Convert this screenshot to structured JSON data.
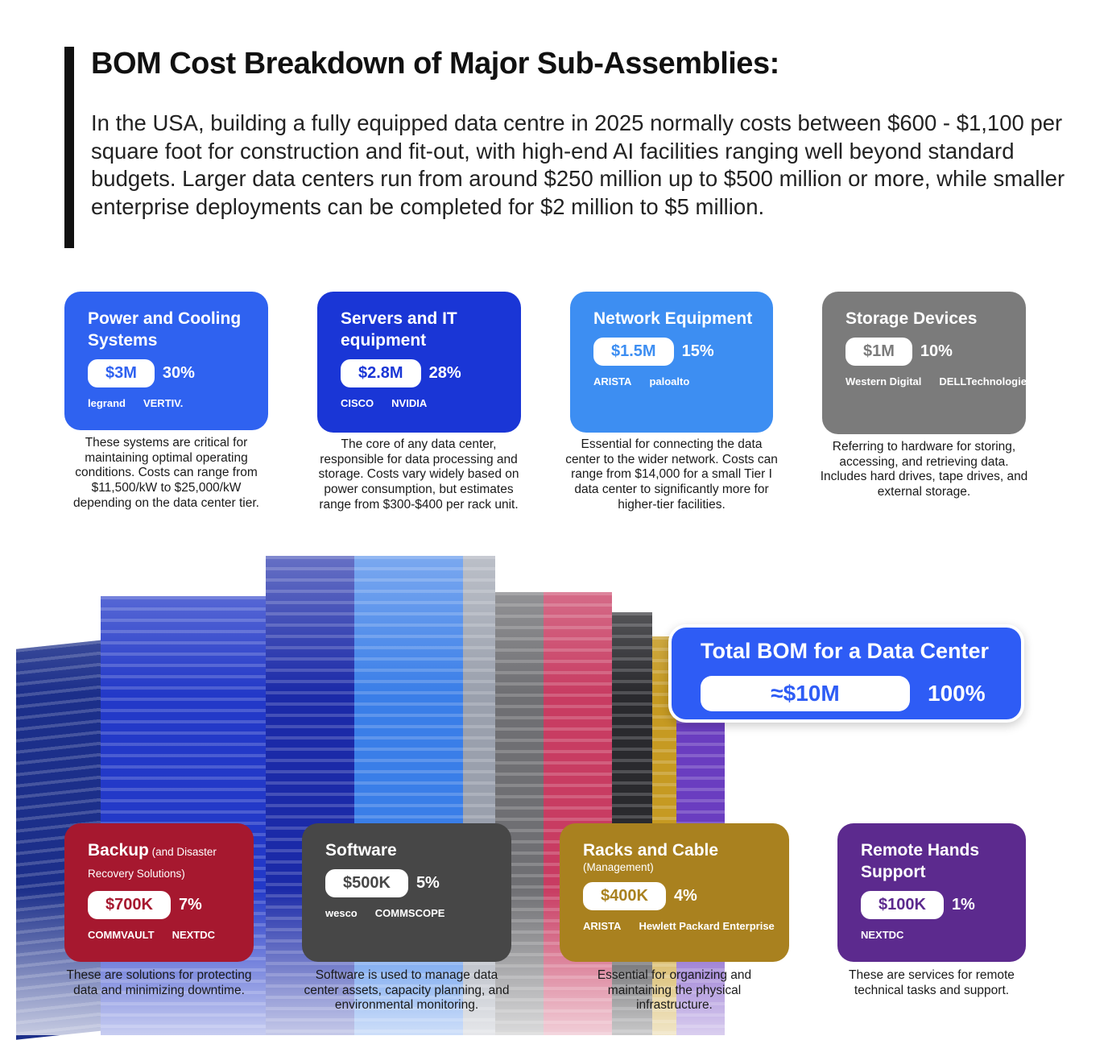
{
  "header": {
    "title": "BOM Cost Breakdown of Major Sub-Assemblies:",
    "intro": "In the USA, building a fully equipped data centre in 2025 normally costs between $600 - $1,100 per square foot for construction and fit-out, with high-end AI facilities ranging well beyond standard budgets. Larger  data centers run from around $250 million up to $500 million or more, while smaller enterprise deployments can be completed for $2 million to $5 million."
  },
  "cards": [
    {
      "title": "Power and Cooling Systems",
      "amount": "$3M",
      "percent": "30%",
      "logos": [
        "legrand",
        "VERTIV."
      ],
      "description": "These systems are critical for maintaining optimal operating conditions. Costs can range from $11,500/kW to $25,000/kW depending on the data center tier."
    },
    {
      "title": "Servers and IT equipment",
      "amount": "$2.8M",
      "percent": "28%",
      "logos": [
        "CISCO",
        "NVIDIA"
      ],
      "description": "The core of any data center, responsible for data processing and storage. Costs vary widely based on power consumption, but estimates range from $300-$400 per rack unit."
    },
    {
      "title": "Network Equipment",
      "amount": "$1.5M",
      "percent": "15%",
      "logos": [
        "ARISTA",
        "paloalto"
      ],
      "description": "Essential for connecting the data center to the wider network. Costs can range from $14,000 for a small Tier I data center to significantly more for higher-tier facilities."
    },
    {
      "title": "Storage Devices",
      "amount": "$1M",
      "percent": "10%",
      "logos": [
        "Western Digital",
        "DELLTechnologies"
      ],
      "description": "Referring to hardware for storing, accessing, and retrieving data. Includes hard drives, tape drives, and external storage."
    },
    {
      "title": "Backup",
      "subtitle": "(and Disaster Recovery Solutions)",
      "amount": "$700K",
      "percent": "7%",
      "logos": [
        "COMMVAULT",
        "NEXTDC"
      ],
      "description": "These are solutions for protecting data and minimizing downtime."
    },
    {
      "title": "Software",
      "amount": "$500K",
      "percent": "5%",
      "logos": [
        "wesco",
        "COMMSCOPE"
      ],
      "description": "Software is used to manage data center assets, capacity planning, and environmental monitoring."
    },
    {
      "title": "Racks and Cable",
      "subtitle": "(Management)",
      "amount": "$400K",
      "percent": "4%",
      "logos": [
        "ARISTA",
        "Hewlett Packard Enterprise"
      ],
      "description": "Essential for organizing and maintaining the physical infrastructure."
    },
    {
      "title": "Remote Hands Support",
      "amount": "$100K",
      "percent": "1%",
      "logos": [
        "NEXTDC"
      ],
      "description": "These are services for remote technical tasks and support."
    }
  ],
  "total": {
    "title": "Total BOM for a Data Center",
    "amount": "≈$10M",
    "percent": "100%"
  }
}
